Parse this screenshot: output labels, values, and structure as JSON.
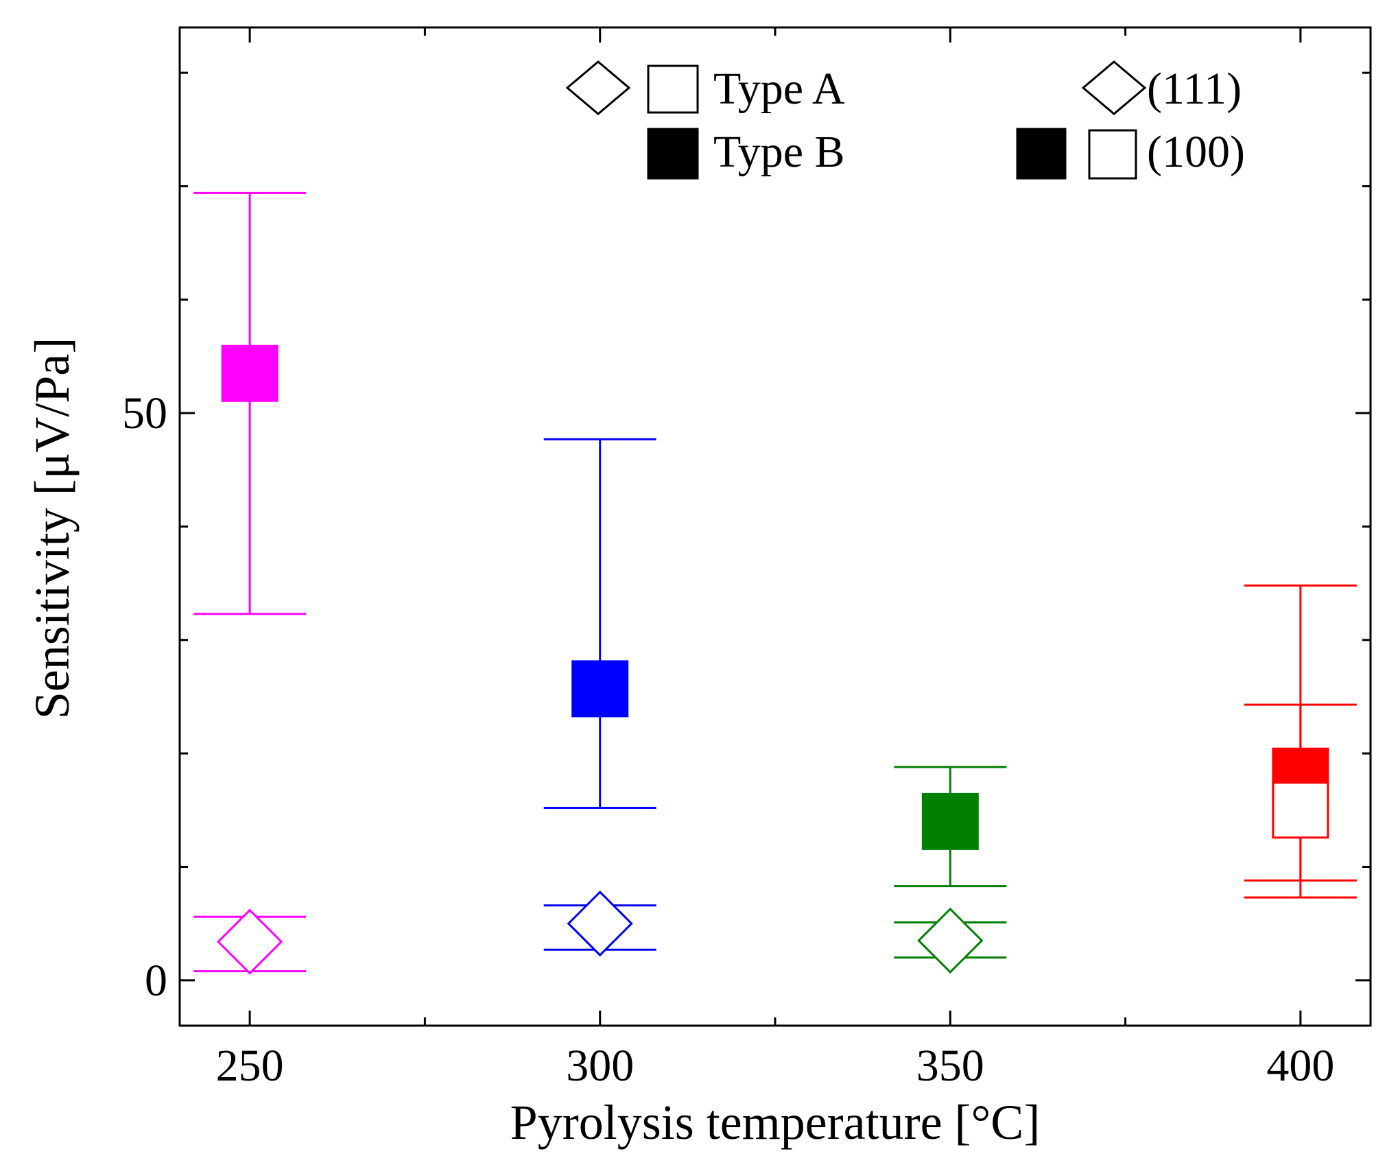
{
  "chart_data": {
    "type": "scatter",
    "title": "",
    "xlabel": "Pyrolysis temperature [°C]",
    "ylabel": "Sensitivity [μV/Pa]",
    "xlim": [
      240,
      410
    ],
    "ylim": [
      -4,
      84
    ],
    "xticks": [
      250,
      300,
      350,
      400
    ],
    "xtick_labels": [
      "250",
      "300",
      "350",
      "400"
    ],
    "yticks": [
      0,
      50
    ],
    "ytick_labels": [
      "0",
      "50"
    ],
    "y_minor_ticks": [
      10,
      20,
      30,
      40,
      60,
      70,
      80
    ],
    "x_minor_ticks": [
      275,
      325,
      375
    ],
    "grid": false,
    "legend": {
      "placement": "top",
      "marker_shape": {
        "title_a": "Type A",
        "title_b": "Type B"
      },
      "orientation": {
        "label_111": "(111)",
        "label_100": "(100)"
      }
    },
    "series": [
      {
        "name": "Type B (100)",
        "marker": "square-filled",
        "x": 250,
        "y": 53.5,
        "err_low": 32.3,
        "err_high": 69.4,
        "color": "#ff00ff"
      },
      {
        "name": "Type A (111)",
        "marker": "diamond-open",
        "x": 250,
        "y": 3.4,
        "err_low": 0.8,
        "err_high": 5.6,
        "color": "#ff00ff"
      },
      {
        "name": "Type B (100)",
        "marker": "square-filled",
        "x": 300,
        "y": 25.7,
        "err_low": 15.2,
        "err_high": 47.7,
        "color": "#0000ff"
      },
      {
        "name": "Type A (111)",
        "marker": "diamond-open",
        "x": 300,
        "y": 5.0,
        "err_low": 2.7,
        "err_high": 6.6,
        "color": "#0000ff"
      },
      {
        "name": "Type B (100)",
        "marker": "square-filled",
        "x": 350,
        "y": 14.0,
        "err_low": 8.3,
        "err_high": 18.8,
        "color": "#007f00"
      },
      {
        "name": "Type A (111)",
        "marker": "diamond-open",
        "x": 350,
        "y": 3.5,
        "err_low": 2.0,
        "err_high": 5.1,
        "color": "#007f00"
      },
      {
        "name": "Type B (100)",
        "marker": "square-filled",
        "x": 400,
        "y": 18.0,
        "err_low": 7.3,
        "err_high": 34.8,
        "color": "#ff0000"
      },
      {
        "name": "Type A (100)",
        "marker": "square-open",
        "x": 400,
        "y": 15.0,
        "err_low": 8.8,
        "err_high": 24.3,
        "color": "#ff0000"
      }
    ]
  }
}
